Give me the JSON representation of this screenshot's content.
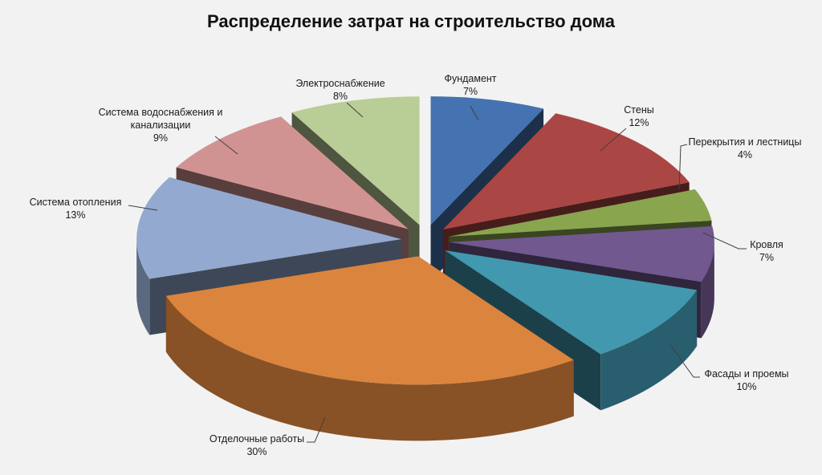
{
  "chart_data": {
    "type": "pie",
    "title": "Распределение затрат на строительство дома",
    "slices": [
      {
        "label": "Фундамент",
        "value": 7,
        "value_text": "7%",
        "color": "#4572b0"
      },
      {
        "label": "Стены",
        "value": 12,
        "value_text": "12%",
        "color": "#aa4643"
      },
      {
        "label": "Перекрытия и лестницы",
        "value": 4,
        "value_text": "4%",
        "color": "#89a54e"
      },
      {
        "label": "Кровля",
        "value": 7,
        "value_text": "7%",
        "color": "#71588f"
      },
      {
        "label": "Фасады и проемы",
        "value": 10,
        "value_text": "10%",
        "color": "#4198af"
      },
      {
        "label": "Отделочные работы",
        "value": 30,
        "value_text": "30%",
        "color": "#db843d"
      },
      {
        "label": "Система отопления",
        "value": 13,
        "value_text": "13%",
        "color": "#93a9cf"
      },
      {
        "label": "Система водоснабжения и канализации",
        "value": 9,
        "value_text": "9%",
        "color": "#d19392"
      },
      {
        "label": "Электроснабжение",
        "value": 8,
        "value_text": "8%",
        "color": "#b9cd96"
      }
    ],
    "style": "3d-exploded",
    "legend": "none"
  }
}
